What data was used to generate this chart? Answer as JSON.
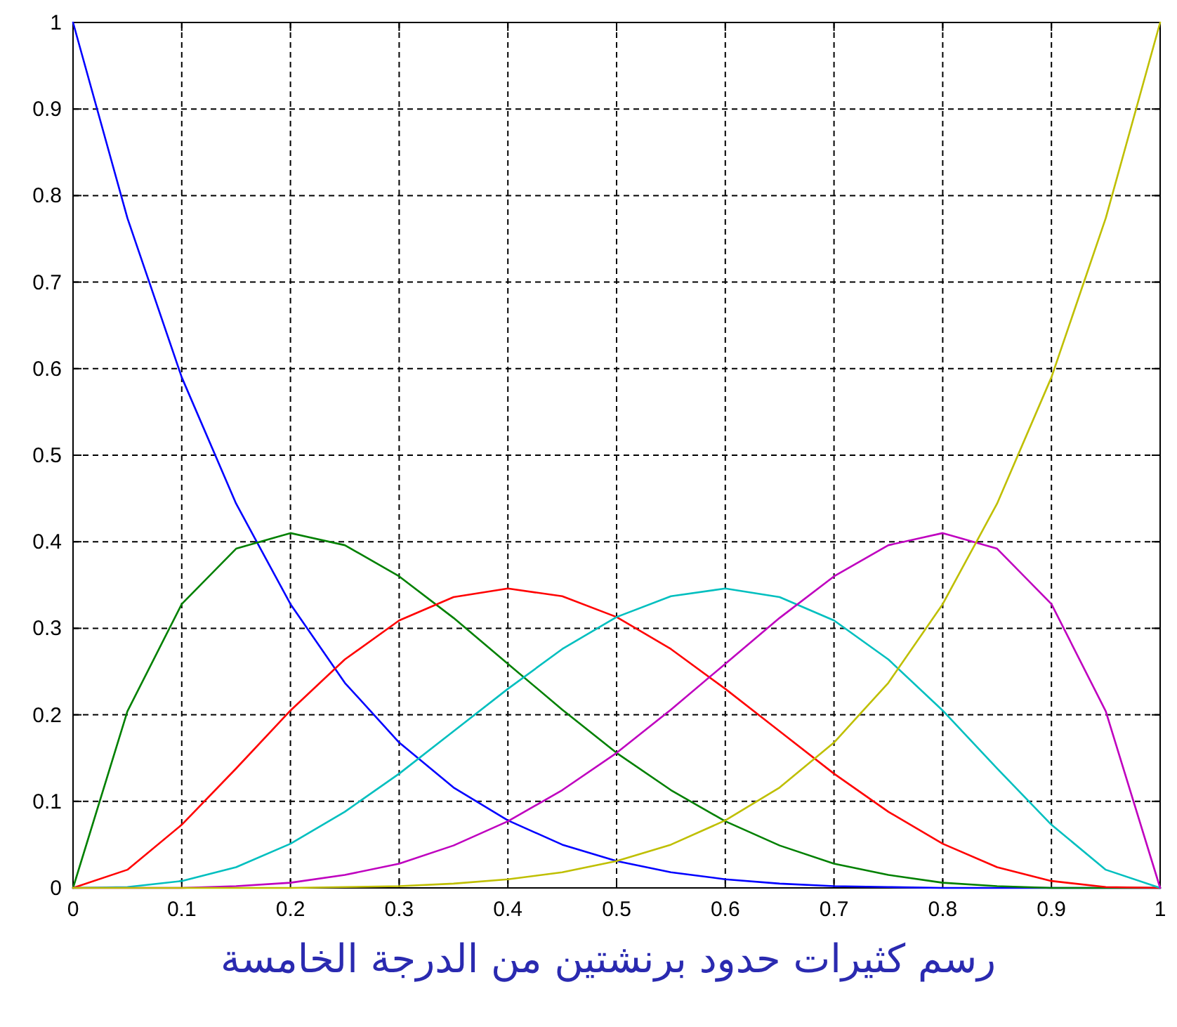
{
  "chart_data": {
    "type": "line",
    "annotations": [
      "رسم كثيرات حدود برنشتين من الدرجة الخامسة"
    ],
    "x": [
      0,
      0.05,
      0.1,
      0.15,
      0.2,
      0.25,
      0.3,
      0.35,
      0.4,
      0.45,
      0.5,
      0.55,
      0.6,
      0.65,
      0.7,
      0.75,
      0.8,
      0.85,
      0.9,
      0.95,
      1
    ],
    "xlim": [
      0,
      1
    ],
    "ylim": [
      0,
      1
    ],
    "xticks": [
      0,
      0.1,
      0.2,
      0.3,
      0.4,
      0.5,
      0.6,
      0.7,
      0.8,
      0.9,
      1
    ],
    "yticks": [
      0,
      0.1,
      0.2,
      0.3,
      0.4,
      0.5,
      0.6,
      0.7,
      0.8,
      0.9,
      1
    ],
    "grid": true,
    "marker": "none",
    "line_style": "solid",
    "series": [
      {
        "color": "#0000ff",
        "values": [
          1,
          0.774,
          0.59,
          0.444,
          0.328,
          0.237,
          0.168,
          0.116,
          0.078,
          0.05,
          0.031,
          0.018,
          0.01,
          0.005,
          0.002,
          0.001,
          0,
          0,
          0,
          0,
          0
        ]
      },
      {
        "color": "#008000",
        "values": [
          0,
          0.204,
          0.328,
          0.392,
          0.41,
          0.396,
          0.36,
          0.312,
          0.259,
          0.206,
          0.156,
          0.113,
          0.077,
          0.049,
          0.028,
          0.015,
          0.006,
          0.002,
          0,
          0,
          0
        ]
      },
      {
        "color": "#ff0000",
        "values": [
          0,
          0.021,
          0.073,
          0.138,
          0.205,
          0.264,
          0.309,
          0.336,
          0.346,
          0.337,
          0.313,
          0.276,
          0.23,
          0.181,
          0.132,
          0.088,
          0.051,
          0.024,
          0.008,
          0.001,
          0
        ]
      },
      {
        "color": "#00bfbf",
        "values": [
          0,
          0.001,
          0.008,
          0.024,
          0.051,
          0.088,
          0.132,
          0.181,
          0.23,
          0.276,
          0.313,
          0.337,
          0.346,
          0.336,
          0.309,
          0.264,
          0.205,
          0.138,
          0.073,
          0.021,
          0
        ]
      },
      {
        "color": "#bf00bf",
        "values": [
          0,
          0,
          0,
          0.002,
          0.006,
          0.015,
          0.028,
          0.049,
          0.077,
          0.113,
          0.156,
          0.206,
          0.259,
          0.312,
          0.36,
          0.396,
          0.41,
          0.392,
          0.328,
          0.204,
          0
        ]
      },
      {
        "color": "#bfbf00",
        "values": [
          0,
          0,
          0,
          0,
          0,
          0.001,
          0.002,
          0.005,
          0.01,
          0.018,
          0.031,
          0.05,
          0.078,
          0.116,
          0.168,
          0.237,
          0.328,
          0.444,
          0.59,
          0.774,
          1
        ]
      }
    ]
  }
}
